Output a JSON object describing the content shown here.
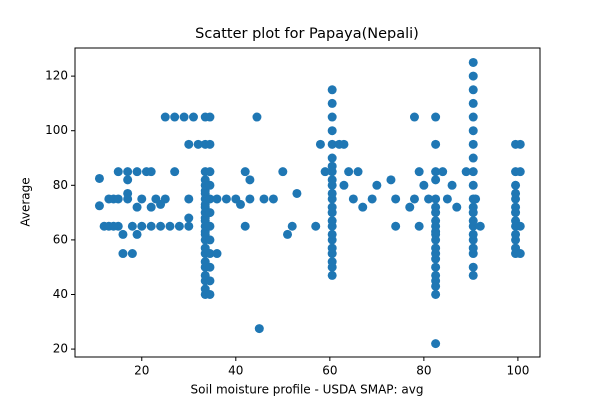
{
  "chart_data": {
    "type": "scatter",
    "title": "Scatter plot for Papaya(Nepali)",
    "x_label": "Soil moisture profile - USDA SMAP: avg",
    "y_label": "Average",
    "color": "#1f77b4",
    "xlim": [
      5.8,
      104.7
    ],
    "ylim": [
      17.1,
      130.3
    ],
    "xticks": [
      20,
      40,
      60,
      80,
      100
    ],
    "yticks": [
      20,
      40,
      60,
      80,
      100,
      120
    ],
    "x": [
      33.5,
      33.5,
      33.5,
      33.5,
      33.5,
      33.5,
      33.5,
      33.5,
      33.5,
      33.5,
      33.5,
      33.5,
      33.5,
      33.5,
      33.5,
      33.5,
      33.5,
      33.5,
      33.5,
      33.5,
      33.5,
      33.5,
      33.5,
      33.5,
      33.5,
      34.5,
      34.5,
      34.5,
      34.5,
      34.5,
      34.5,
      34.5,
      34.5,
      34.5,
      34.5,
      34.5,
      34.5,
      60.5,
      60.5,
      60.5,
      60.5,
      60.5,
      60.5,
      60.5,
      60.5,
      60.5,
      60.5,
      60.5,
      60.5,
      60.5,
      60.5,
      60.5,
      60.5,
      60.5,
      60.5,
      60.5,
      60.5,
      60.5,
      60.5,
      60.5,
      82.5,
      82.5,
      82.5,
      82.5,
      82.5,
      82.5,
      82.5,
      82.5,
      82.5,
      82.5,
      82.5,
      82.5,
      82.5,
      82.5,
      82.5,
      82.5,
      82.5,
      82.5,
      82.5,
      82.5,
      82.5,
      90.5,
      90.5,
      90.5,
      90.5,
      90.5,
      90.5,
      90.5,
      90.5,
      90.5,
      90.5,
      90.5,
      90.5,
      90.5,
      90.5,
      90.5,
      90.5,
      90.5,
      90.5,
      90.5,
      90.5,
      90.5,
      99.5,
      99.5,
      99.5,
      99.5,
      99.5,
      99.5,
      99.5,
      99.5,
      99.5,
      99.5,
      99.5,
      99.5,
      99.5,
      100.5,
      100.5,
      100.5,
      100.5,
      11,
      11,
      45,
      44.5,
      25,
      27,
      29,
      31,
      17,
      15,
      19,
      21,
      22,
      17,
      17,
      16,
      18,
      36,
      24,
      42,
      43,
      42,
      50,
      46,
      48,
      52,
      53,
      51,
      57,
      58,
      59,
      62,
      63,
      64,
      66,
      63,
      65,
      67,
      69,
      70,
      73,
      74,
      74,
      77,
      78,
      79,
      79,
      80,
      81,
      84,
      85,
      86,
      87,
      89,
      91,
      92,
      78,
      40,
      41,
      43,
      38,
      36,
      30,
      32,
      20,
      22,
      25,
      27,
      30,
      30,
      13,
      14,
      15,
      16,
      19,
      22,
      26,
      28,
      30,
      12,
      13,
      14,
      18,
      20,
      23,
      24,
      19,
      17,
      15
    ],
    "values": [
      40,
      42,
      45,
      47,
      50,
      52,
      55,
      57,
      60,
      62,
      63,
      65,
      67,
      68,
      70,
      72,
      73,
      75,
      77,
      78,
      80,
      82,
      85,
      95,
      105,
      40,
      45,
      50,
      55,
      60,
      65,
      70,
      75,
      80,
      85,
      95,
      105,
      47,
      50,
      52,
      55,
      57,
      60,
      62,
      65,
      67,
      70,
      72,
      75,
      77,
      80,
      82,
      85,
      87,
      90,
      95,
      100,
      105,
      110,
      115,
      22,
      40,
      43,
      45,
      47,
      50,
      53,
      55,
      57,
      60,
      62,
      63,
      65,
      67,
      70,
      72,
      75,
      82,
      85,
      95,
      105,
      47,
      50,
      55,
      57,
      60,
      62,
      65,
      67,
      70,
      72,
      75,
      80,
      85,
      90,
      95,
      100,
      105,
      110,
      115,
      120,
      125,
      55,
      57,
      60,
      62,
      65,
      67,
      70,
      72,
      75,
      77,
      80,
      85,
      95,
      55,
      65,
      85,
      95,
      82.5,
      72.5,
      27.5,
      105,
      105,
      105,
      105,
      105,
      85,
      85,
      85,
      85,
      85,
      77,
      82,
      55,
      55,
      55,
      65,
      65,
      82,
      85,
      85,
      75,
      75,
      65,
      77,
      62,
      65,
      95,
      85,
      95,
      95,
      85,
      85,
      80,
      75,
      72,
      75,
      80,
      82,
      65,
      75,
      72,
      105,
      65,
      85,
      80,
      75,
      85,
      75,
      80,
      72,
      85,
      75,
      65,
      75,
      75,
      73,
      75,
      75,
      75,
      95,
      95,
      75,
      72,
      75,
      85,
      68,
      65,
      75,
      75,
      65,
      62,
      62,
      65,
      65,
      65,
      75,
      65,
      65,
      65,
      65,
      65,
      75,
      73,
      72,
      75,
      75
    ]
  }
}
